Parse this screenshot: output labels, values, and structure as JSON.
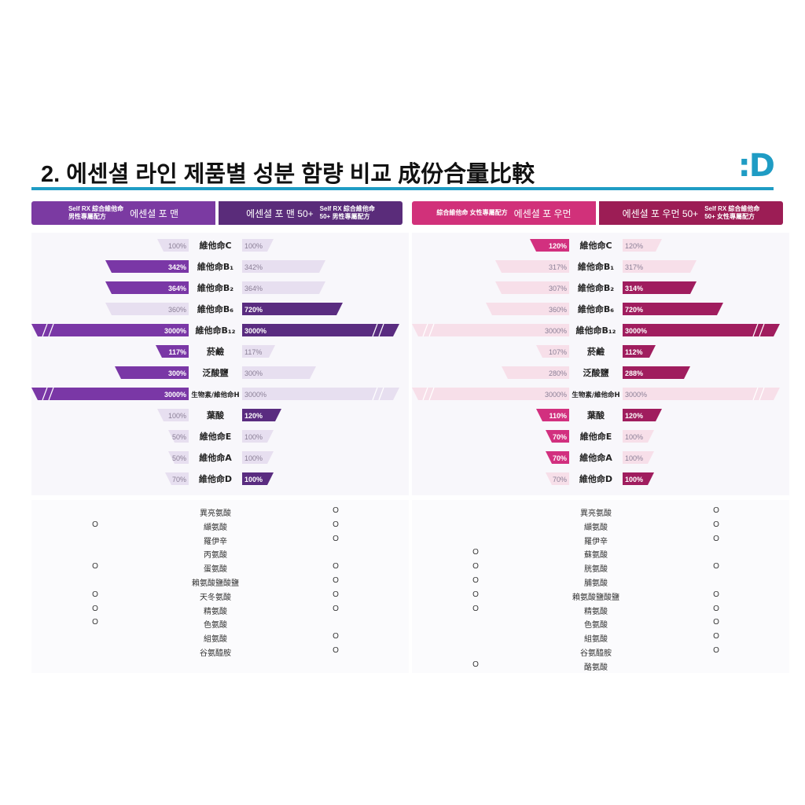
{
  "header": {
    "title": "2. 에센셜 라인 제품별 성분 함량 비교 成份合量比較",
    "logo": ":D"
  },
  "colors": {
    "men_light": "#a77ccf",
    "men_dark": "#5a2c82",
    "men_head_left": "#7b3aa2",
    "men_head_right": "#5a2c7a",
    "women_head_left": "#d1317a",
    "women_head_right": "#9c1d55",
    "women_light": "#d12f82",
    "women_dark": "#a01d5e",
    "pale_purple": "#e6def0",
    "pale_pink": "#f6dfe8",
    "rule": "#1f9cc4"
  },
  "men": {
    "left_head": {
      "sub_top": "Self RX 綜合維他命",
      "sub_bottom": "男性專屬配方",
      "main": "에센셜 포 맨"
    },
    "right_head": {
      "main": "에센셜 포 맨 50+",
      "sub_top": "Self RX 綜合維他命",
      "sub_bottom": "50+ 男性專屬配方"
    }
  },
  "women": {
    "left_head": {
      "sub": "綜合維他命 女性專屬配方",
      "main": "에센셜 포 우먼"
    },
    "right_head": {
      "main": "에센셜 포 우먼 50+",
      "sub_top": "Self RX 綜合維他命",
      "sub_bottom": "50+ 女性專屬配方"
    }
  },
  "chart_data": [
    {
      "type": "bar",
      "orientation": "butterfly",
      "panel": "men",
      "categories": [
        "維他命C",
        "維他命B₁",
        "維他命B₂",
        "維他命B₆",
        "維他命B₁₂",
        "菸鹼",
        "泛酸鹽",
        "生物素/維他命H",
        "葉酸",
        "維他命E",
        "維他命A",
        "維他命D"
      ],
      "series": [
        {
          "name": "에센셜 포 맨",
          "side": "left",
          "values": [
            100,
            342,
            364,
            360,
            3000,
            117,
            300,
            3000,
            100,
            50,
            50,
            70
          ],
          "labels": [
            "100%",
            "342%",
            "364%",
            "360%",
            "3000%",
            "117%",
            "300%",
            "3000%",
            "100%",
            "50%",
            "50%",
            "70%"
          ],
          "highlight": [
            false,
            true,
            true,
            false,
            true,
            true,
            true,
            true,
            false,
            false,
            false,
            false
          ]
        },
        {
          "name": "에센셜 포 맨 50+",
          "side": "right",
          "values": [
            100,
            342,
            364,
            720,
            3000,
            117,
            300,
            3000,
            120,
            100,
            100,
            100
          ],
          "labels": [
            "100%",
            "342%",
            "364%",
            "720%",
            "3000%",
            "117%",
            "300%",
            "3000%",
            "120%",
            "100%",
            "100%",
            "100%"
          ],
          "highlight": [
            false,
            false,
            false,
            true,
            true,
            false,
            false,
            false,
            true,
            false,
            false,
            true
          ]
        }
      ]
    },
    {
      "type": "bar",
      "orientation": "butterfly",
      "panel": "women",
      "categories": [
        "維他命C",
        "維他命B₁",
        "維他命B₂",
        "維他命B₆",
        "維他命B₁₂",
        "菸鹼",
        "泛酸鹽",
        "生物素/維他命H",
        "葉酸",
        "維他命E",
        "維他命A",
        "維他命D"
      ],
      "series": [
        {
          "name": "에센셜 포 우먼",
          "side": "left",
          "values": [
            120,
            317,
            307,
            360,
            3000,
            107,
            280,
            3000,
            110,
            70,
            70,
            70
          ],
          "labels": [
            "120%",
            "317%",
            "307%",
            "360%",
            "3000%",
            "107%",
            "280%",
            "3000%",
            "110%",
            "70%",
            "70%",
            "70%"
          ],
          "highlight": [
            true,
            false,
            false,
            false,
            false,
            false,
            false,
            false,
            true,
            true,
            true,
            false
          ]
        },
        {
          "name": "에센셜 포 우먼 50+",
          "side": "right",
          "values": [
            120,
            317,
            314,
            720,
            3000,
            112,
            288,
            3000,
            120,
            100,
            100,
            100
          ],
          "labels": [
            "120%",
            "317%",
            "314%",
            "720%",
            "3000%",
            "112%",
            "288%",
            "3000%",
            "120%",
            "100%",
            "100%",
            "100%"
          ],
          "highlight": [
            false,
            false,
            true,
            true,
            true,
            true,
            true,
            false,
            true,
            false,
            false,
            true
          ]
        }
      ]
    }
  ],
  "amino_men": {
    "rows": [
      {
        "name": "異亮氨酸",
        "left": "",
        "right": "O"
      },
      {
        "name": "纈氨酸",
        "left": "O",
        "right": "O"
      },
      {
        "name": "羅伊辛",
        "left": "",
        "right": "O"
      },
      {
        "name": "丙氨酸",
        "left": "",
        "right": ""
      },
      {
        "name": "蛋氨酸",
        "left": "O",
        "right": "O"
      },
      {
        "name": "賴氨酸鹽酸鹽",
        "left": "",
        "right": "O"
      },
      {
        "name": "天冬氨酸",
        "left": "O",
        "right": "O"
      },
      {
        "name": "精氨酸",
        "left": "O",
        "right": "O"
      },
      {
        "name": "色氨酸",
        "left": "O",
        "right": ""
      },
      {
        "name": "組氨酸",
        "left": "",
        "right": "O"
      },
      {
        "name": "谷氨醯胺",
        "left": "",
        "right": "O"
      }
    ]
  },
  "amino_women": {
    "rows": [
      {
        "name": "異亮氨酸",
        "left": "",
        "right": "O"
      },
      {
        "name": "纈氨酸",
        "left": "",
        "right": "O"
      },
      {
        "name": "羅伊辛",
        "left": "",
        "right": "O"
      },
      {
        "name": "蘇氨酸",
        "left": "O",
        "right": ""
      },
      {
        "name": "胱氨酸",
        "left": "O",
        "right": "O"
      },
      {
        "name": "脯氨酸",
        "left": "O",
        "right": ""
      },
      {
        "name": "賴氨酸鹽酸鹽",
        "left": "O",
        "right": "O"
      },
      {
        "name": "精氨酸",
        "left": "O",
        "right": "O"
      },
      {
        "name": "色氨酸",
        "left": "",
        "right": "O"
      },
      {
        "name": "組氨酸",
        "left": "",
        "right": "O"
      },
      {
        "name": "谷氨醯胺",
        "left": "",
        "right": "O"
      },
      {
        "name": "酪氨酸",
        "left": "O",
        "right": ""
      }
    ]
  }
}
